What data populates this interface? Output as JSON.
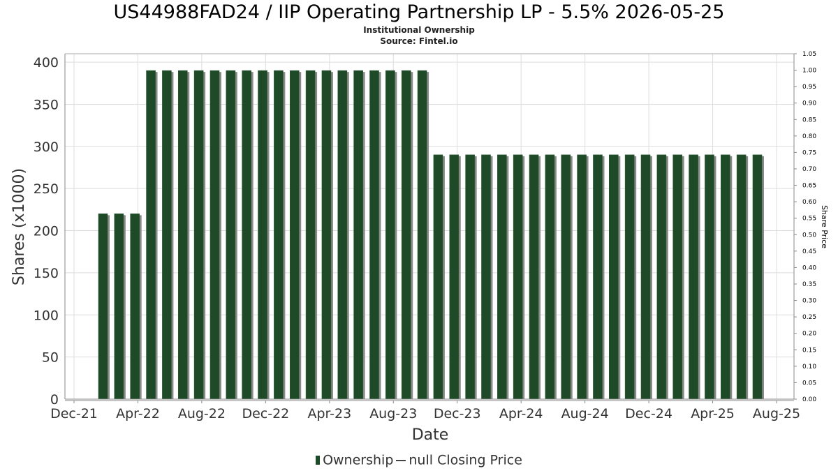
{
  "chart_data": {
    "type": "bar",
    "title": "US44988FAD24 / IIP Operating Partnership LP - 5.5% 2026-05-25",
    "subtitle": [
      "Institutional Ownership",
      "Source: Fintel.io"
    ],
    "xlabel": "Date",
    "ylabel": "Shares (x1000)",
    "y2label": "Share Price",
    "ylim": [
      0,
      410
    ],
    "y2lim": [
      0,
      1.05
    ],
    "yticks": [
      0,
      50,
      100,
      150,
      200,
      250,
      300,
      350,
      400
    ],
    "y2ticks": [
      "0.00",
      "0.05",
      "0.10",
      "0.15",
      "0.20",
      "0.25",
      "0.30",
      "0.35",
      "0.40",
      "0.45",
      "0.50",
      "0.55",
      "0.60",
      "0.65",
      "0.70",
      "0.75",
      "0.80",
      "0.85",
      "0.90",
      "0.95",
      "1.00",
      "1.05"
    ],
    "xticks": [
      "Dec-21",
      "Apr-22",
      "Aug-22",
      "Dec-22",
      "Apr-23",
      "Aug-23",
      "Dec-23",
      "Apr-24",
      "Aug-24",
      "Dec-24",
      "Apr-25",
      "Aug-25"
    ],
    "grid": true,
    "legend_position": "bottom",
    "series": [
      {
        "name": "Ownership",
        "color": "#1e4a28",
        "values": [
          220,
          220,
          220,
          390,
          390,
          390,
          390,
          390,
          390,
          390,
          390,
          390,
          390,
          390,
          390,
          390,
          390,
          390,
          390,
          390,
          390,
          290,
          290,
          290,
          290,
          290,
          290,
          290,
          290,
          290,
          290,
          290,
          290,
          290,
          290,
          290,
          290,
          290,
          290,
          290,
          290,
          290
        ]
      },
      {
        "name": "null Closing Price",
        "color": "#444444",
        "values": []
      }
    ]
  },
  "legend": {
    "ownership": "Ownership",
    "price": "null Closing Price"
  }
}
